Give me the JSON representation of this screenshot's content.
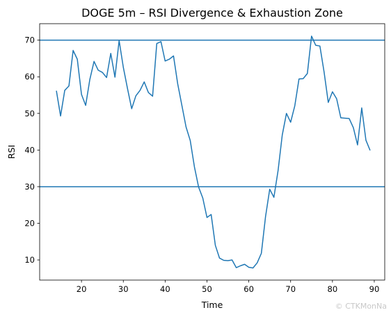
{
  "chart_data": {
    "type": "line",
    "title": "DOGE 5m – RSI Divergence & Exhaustion Zone",
    "xlabel": "Time",
    "ylabel": "RSI",
    "xlim": [
      10,
      92.5
    ],
    "ylim": [
      4.5,
      74.5
    ],
    "xticks": [
      20,
      30,
      40,
      50,
      60,
      70,
      80,
      90
    ],
    "yticks": [
      10,
      20,
      30,
      40,
      50,
      60,
      70
    ],
    "grid": false,
    "legend": "none",
    "line_color": "#1f77b4",
    "hlines": [
      70,
      30
    ],
    "x": [
      14,
      15,
      16,
      17,
      18,
      19,
      20,
      21,
      22,
      23,
      24,
      25,
      26,
      27,
      28,
      29,
      30,
      31,
      32,
      33,
      34,
      35,
      36,
      37,
      38,
      39,
      40,
      41,
      42,
      43,
      44,
      45,
      46,
      47,
      48,
      49,
      50,
      51,
      52,
      53,
      54,
      55,
      56,
      57,
      58,
      59,
      60,
      61,
      62,
      63,
      64,
      65,
      66,
      67,
      68,
      69,
      70,
      71,
      72,
      73,
      74,
      75,
      76,
      77,
      78,
      79,
      80,
      81,
      82,
      83,
      84,
      85,
      86,
      87,
      88,
      89
    ],
    "series": [
      {
        "values": [
          56.2,
          49.3,
          56.3,
          57.5,
          67.2,
          64.8,
          55.2,
          52.2,
          59.3,
          64.2,
          61.8,
          61.2,
          59.8,
          66.4,
          59.9,
          69.9,
          62.6,
          56.8,
          51.3,
          54.8,
          56.3,
          58.6,
          55.7,
          54.7,
          69.1,
          69.6,
          64.3,
          64.8,
          65.7,
          58.1,
          52.2,
          46.3,
          42.6,
          35.4,
          29.9,
          26.9,
          21.6,
          22.4,
          14.0,
          10.5,
          9.9,
          9.8,
          10.0,
          7.9,
          8.4,
          8.8,
          8.0,
          7.8,
          9.2,
          11.8,
          21.8,
          29.3,
          27.1,
          34.4,
          44.1,
          50.0,
          47.6,
          52.1,
          59.4,
          59.5,
          60.9,
          71.1,
          68.6,
          68.4,
          61.3,
          53.0,
          55.9,
          54.0,
          48.8,
          48.7,
          48.6,
          46.1,
          41.4,
          51.5,
          42.7,
          39.9
        ]
      }
    ]
  },
  "watermark": "© CTKMonNa"
}
